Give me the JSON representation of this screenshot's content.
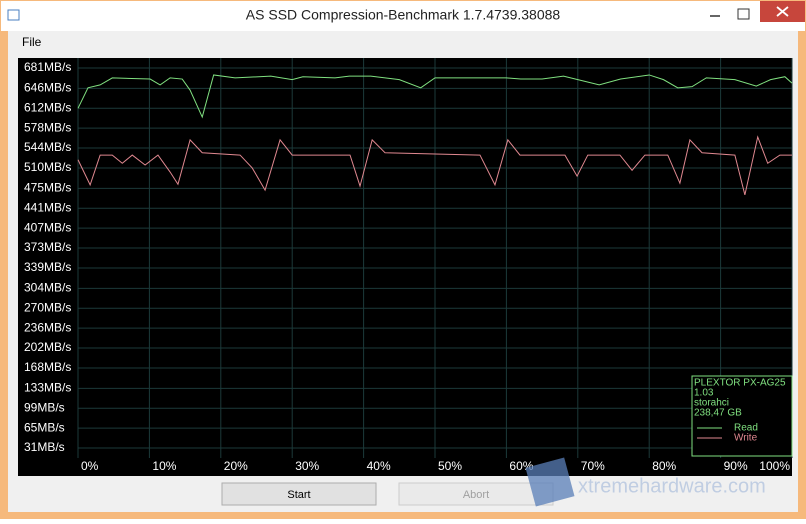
{
  "window": {
    "title": "AS SSD Compression-Benchmark 1.7.4739.38088"
  },
  "menu": [
    "File"
  ],
  "buttons": [
    "Start",
    "Abort"
  ],
  "watermark": "xtremehardware.com",
  "info": [
    "PLEXTOR PX-AG25",
    "1.03",
    "storahci",
    "238,47 GB"
  ],
  "chart_data": {
    "type": "line",
    "xlim": [
      0,
      100
    ],
    "xticks": [
      {
        "value": 0,
        "label": "0%"
      },
      {
        "value": 10,
        "label": "10%"
      },
      {
        "value": 20,
        "label": "20%"
      },
      {
        "value": 30,
        "label": "30%"
      },
      {
        "value": 40,
        "label": "40%"
      },
      {
        "value": 50,
        "label": "50%"
      },
      {
        "value": 60,
        "label": "60%"
      },
      {
        "value": 70,
        "label": "70%"
      },
      {
        "value": 80,
        "label": "80%"
      },
      {
        "value": 90,
        "label": "90%"
      },
      {
        "value": 100,
        "label": "100%"
      }
    ],
    "ylim": [
      14,
      698
    ],
    "yticks": [
      {
        "value": 681,
        "label": "681MB/s"
      },
      {
        "value": 646,
        "label": "646MB/s"
      },
      {
        "value": 612,
        "label": "612MB/s"
      },
      {
        "value": 578,
        "label": "578MB/s"
      },
      {
        "value": 544,
        "label": "544MB/s"
      },
      {
        "value": 510,
        "label": "510MB/s"
      },
      {
        "value": 475,
        "label": "475MB/s"
      },
      {
        "value": 441,
        "label": "441MB/s"
      },
      {
        "value": 407,
        "label": "407MB/s"
      },
      {
        "value": 373,
        "label": "373MB/s"
      },
      {
        "value": 339,
        "label": "339MB/s"
      },
      {
        "value": 304,
        "label": "304MB/s"
      },
      {
        "value": 270,
        "label": "270MB/s"
      },
      {
        "value": 236,
        "label": "236MB/s"
      },
      {
        "value": 202,
        "label": "202MB/s"
      },
      {
        "value": 168,
        "label": "168MB/s"
      },
      {
        "value": 133,
        "label": "133MB/s"
      },
      {
        "value": 99,
        "label": "99MB/s"
      },
      {
        "value": 65,
        "label": "65MB/s"
      },
      {
        "value": 31,
        "label": "31MB/s"
      }
    ],
    "grid": true,
    "series": [
      {
        "name": "Read",
        "color": "#80e080",
        "x": [
          0,
          1.4,
          3.1,
          4.8,
          10.1,
          11.5,
          12.9,
          14.6,
          15.7,
          17.4,
          19,
          22,
          27,
          30,
          31.5,
          36,
          38,
          41,
          45,
          48,
          50,
          56,
          60,
          62,
          65,
          68,
          70,
          73,
          76,
          80,
          82,
          84,
          86,
          88,
          92,
          95,
          97,
          99,
          100
        ],
        "values": [
          612,
          647,
          652,
          664,
          662,
          652,
          664,
          662,
          643,
          597,
          669,
          664,
          667,
          661,
          666,
          664,
          667,
          667,
          661,
          647,
          664,
          664,
          664,
          662,
          662,
          667,
          661,
          652,
          662,
          669,
          661,
          647,
          649,
          664,
          661,
          650,
          661,
          666,
          655
        ]
      },
      {
        "name": "Write",
        "color": "#e08890",
        "x": [
          0,
          1.7,
          3.1,
          4.8,
          6.2,
          7.6,
          9.4,
          11.2,
          12.9,
          14,
          15.7,
          17.4,
          22.7,
          24.4,
          26.2,
          28.3,
          30,
          38.1,
          39.5,
          41.2,
          43,
          56.3,
          58.4,
          60.2,
          61.9,
          68.2,
          69.9,
          71.4,
          75.9,
          77.6,
          79.4,
          82.6,
          84.3,
          85.7,
          87.4,
          92,
          93.4,
          95.2,
          96.6,
          98.3,
          100
        ],
        "values": [
          524,
          481,
          532,
          532,
          518,
          532,
          515,
          532,
          503,
          482,
          558,
          536,
          532,
          510,
          472,
          558,
          532,
          532,
          479,
          558,
          536,
          532,
          481,
          558,
          532,
          532,
          496,
          532,
          532,
          506,
          532,
          532,
          484,
          558,
          536,
          532,
          464,
          563,
          518,
          532,
          532
        ]
      }
    ]
  }
}
